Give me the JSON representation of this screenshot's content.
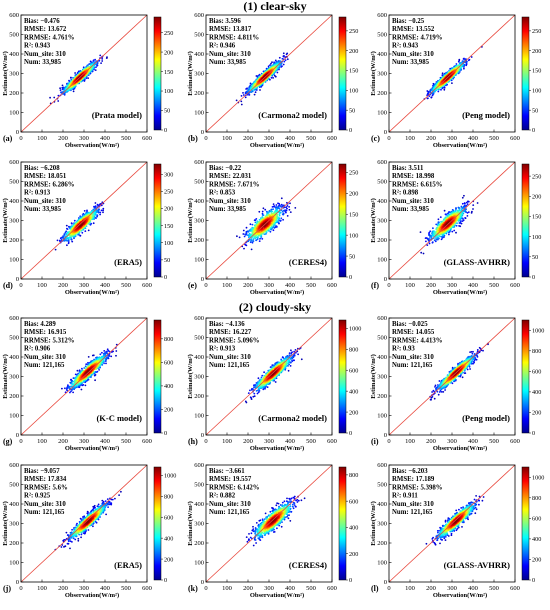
{
  "sections": [
    {
      "title": "(1) clear-sky"
    },
    {
      "title": "(2) cloudy-sky"
    }
  ],
  "chart_data": [
    {
      "type": "scatter",
      "panel_label": "(a)",
      "model": "(Prata model)",
      "section": 0,
      "stats": [
        "Bias: −0.476",
        "RMSE: 13.672",
        "RRMSE: 4.761%",
        "R²: 0.943",
        "Num_site: 310",
        "Num: 33,985"
      ],
      "xlabel": "Observation(W/m²)",
      "ylabel": "Estimate(W/m²)",
      "xlim": [
        0,
        600
      ],
      "ylim": [
        0,
        600
      ],
      "ticks": [
        0,
        100,
        200,
        300,
        400,
        500,
        600
      ],
      "density_center": [
        280,
        280
      ],
      "density_spread": [
        55,
        10
      ],
      "colorbar_ticks": [
        0,
        50,
        100,
        150,
        200,
        250
      ],
      "colorbar_max": 290
    },
    {
      "type": "scatter",
      "panel_label": "(b)",
      "model": "(Carmona2 model)",
      "section": 0,
      "stats": [
        "Bias: 3.596",
        "RMSE: 13.817",
        "RRMSE: 4.811%",
        "R²: 0.946",
        "Num_site: 310",
        "Num: 33,985"
      ],
      "xlabel": "Observation(W/m²)",
      "ylabel": "Estimate(W/m²)",
      "xlim": [
        0,
        600
      ],
      "ylim": [
        0,
        600
      ],
      "ticks": [
        0,
        100,
        200,
        300,
        400,
        500,
        600
      ],
      "density_center": [
        280,
        283
      ],
      "density_spread": [
        55,
        10
      ],
      "colorbar_ticks": [
        0,
        50,
        100,
        150,
        200,
        250
      ],
      "colorbar_max": 285
    },
    {
      "type": "scatter",
      "panel_label": "(c)",
      "model": "(Peng model)",
      "section": 0,
      "stats": [
        "Bias: −0.25",
        "RMSE: 13.552",
        "RRMSE: 4.719%",
        "R²: 0.943",
        "Num_site: 310",
        "Num: 33,985"
      ],
      "xlabel": "Observation(W/m²)",
      "ylabel": "Estimate(W/m²)",
      "xlim": [
        0,
        600
      ],
      "ylim": [
        0,
        600
      ],
      "ticks": [
        0,
        100,
        200,
        300,
        400,
        500,
        600
      ],
      "density_center": [
        280,
        280
      ],
      "density_spread": [
        55,
        10
      ],
      "colorbar_ticks": [
        0,
        50,
        100,
        150,
        200,
        250
      ],
      "colorbar_max": 285
    },
    {
      "type": "scatter",
      "panel_label": "(d)",
      "model": "(ERA5)",
      "section": 0,
      "stats": [
        "Bias: −6.208",
        "RMSE: 18.051",
        "RRMSE: 6.286%",
        "R²: 0.913",
        "Num_site: 310",
        "Num: 33,985"
      ],
      "xlabel": "Observation(W/m²)",
      "ylabel": "Estimate(W/m²)",
      "xlim": [
        0,
        600
      ],
      "ylim": [
        0,
        600
      ],
      "ticks": [
        0,
        100,
        200,
        300,
        400,
        500,
        600
      ],
      "density_center": [
        285,
        278
      ],
      "density_spread": [
        55,
        14
      ],
      "colorbar_ticks": [
        0,
        50,
        100,
        150,
        200,
        250,
        300
      ],
      "colorbar_max": 330
    },
    {
      "type": "scatter",
      "panel_label": "(e)",
      "model": "(CERES4)",
      "section": 0,
      "stats": [
        "Bias: −0.22",
        "RMSE: 22.031",
        "RRMSE: 7.671%",
        "R²: 0.853",
        "Num_site: 310",
        "Num: 33,985"
      ],
      "xlabel": "Observation(W/m²)",
      "ylabel": "Estimate(W/m²)",
      "xlim": [
        0,
        600
      ],
      "ylim": [
        0,
        600
      ],
      "ticks": [
        0,
        100,
        200,
        300,
        400,
        500,
        600
      ],
      "density_center": [
        280,
        280
      ],
      "density_spread": [
        55,
        20
      ],
      "colorbar_ticks": [
        0,
        50,
        100,
        150,
        200,
        250
      ],
      "colorbar_max": 270
    },
    {
      "type": "scatter",
      "panel_label": "(f)",
      "model": "(GLASS-AVHRR)",
      "section": 0,
      "stats": [
        "Bias: 3.511",
        "RMSE: 18.998",
        "RRMSE: 6.615%",
        "R²: 0.898",
        "Num_site: 310",
        "Num: 33,985"
      ],
      "xlabel": "Observation(W/m²)",
      "ylabel": "Estimate(W/m²)",
      "xlim": [
        0,
        600
      ],
      "ylim": [
        0,
        600
      ],
      "ticks": [
        0,
        100,
        200,
        300,
        400,
        500,
        600
      ],
      "density_center": [
        280,
        284
      ],
      "density_spread": [
        55,
        17
      ],
      "colorbar_ticks": [
        0,
        50,
        100,
        150,
        200,
        250
      ],
      "colorbar_max": 280
    },
    {
      "type": "scatter",
      "panel_label": "(g)",
      "model": "(K-C model)",
      "section": 1,
      "stats": [
        "Bias: 4.289",
        "RMSE: 16.915",
        "RRMSE: 5.312%",
        "R²: 0.906",
        "Num_site: 310",
        "Num: 121,165"
      ],
      "xlabel": "Observation(W/m²)",
      "ylabel": "Estimate(W/m²)",
      "xlim": [
        0,
        600
      ],
      "ylim": [
        0,
        600
      ],
      "ticks": [
        0,
        100,
        200,
        300,
        400,
        500,
        600
      ],
      "density_center": [
        320,
        325
      ],
      "density_spread": [
        60,
        13
      ],
      "colorbar_ticks": [
        0,
        200,
        400,
        600,
        800
      ],
      "colorbar_max": 960
    },
    {
      "type": "scatter",
      "panel_label": "(h)",
      "model": "(Carmona2 model)",
      "section": 1,
      "stats": [
        "Bias: −4.136",
        "RMSE: 16.227",
        "RRMSE: 5.096%",
        "R²: 0.913",
        "Num_site: 310",
        "Num: 121,165"
      ],
      "xlabel": "Observation(W/m²)",
      "ylabel": "Estimate(W/m²)",
      "xlim": [
        0,
        600
      ],
      "ylim": [
        0,
        600
      ],
      "ticks": [
        0,
        100,
        200,
        300,
        400,
        500,
        600
      ],
      "density_center": [
        320,
        316
      ],
      "density_spread": [
        60,
        13
      ],
      "colorbar_ticks": [
        0,
        200,
        400,
        600,
        800,
        1000
      ],
      "colorbar_max": 1080
    },
    {
      "type": "scatter",
      "panel_label": "(i)",
      "model": "(Peng model)",
      "section": 1,
      "stats": [
        "Bias: −0.025",
        "RMSE: 14.055",
        "RRMSE: 4.413%",
        "R²: 0.93",
        "Num_site: 310",
        "Num: 121,165"
      ],
      "xlabel": "Observation(W/m²)",
      "ylabel": "Estimate(W/m²)",
      "xlim": [
        0,
        600
      ],
      "ylim": [
        0,
        600
      ],
      "ticks": [
        0,
        100,
        200,
        300,
        400,
        500,
        600
      ],
      "density_center": [
        320,
        320
      ],
      "density_spread": [
        60,
        11
      ],
      "colorbar_ticks": [
        0,
        200,
        400,
        600,
        800,
        1000
      ],
      "colorbar_max": 1100
    },
    {
      "type": "scatter",
      "panel_label": "(j)",
      "model": "(ERA5)",
      "section": 1,
      "stats": [
        "Bias: −9.057",
        "RMSE: 17.834",
        "RRMSE: 5.6%",
        "R²: 0.925",
        "Num_site: 310",
        "Num: 121,165"
      ],
      "xlabel": "Observation(W/m²)",
      "ylabel": "Estimate(W/m²)",
      "xlim": [
        0,
        600
      ],
      "ylim": [
        0,
        600
      ],
      "ticks": [
        0,
        100,
        200,
        300,
        400,
        500,
        600
      ],
      "density_center": [
        320,
        311
      ],
      "density_spread": [
        60,
        12
      ],
      "colorbar_ticks": [
        0,
        200,
        400,
        600,
        800,
        1000
      ],
      "colorbar_max": 1080
    },
    {
      "type": "scatter",
      "panel_label": "(k)",
      "model": "(CERES4)",
      "section": 1,
      "stats": [
        "Bias: −3.661",
        "RMSE: 19.557",
        "RRMSE: 6.142%",
        "R²: 0.882",
        "Num_site: 310",
        "Num: 121,165"
      ],
      "xlabel": "Observation(W/m²)",
      "ylabel": "Estimate(W/m²)",
      "xlim": [
        0,
        600
      ],
      "ylim": [
        0,
        600
      ],
      "ticks": [
        0,
        100,
        200,
        300,
        400,
        500,
        600
      ],
      "density_center": [
        320,
        316
      ],
      "density_spread": [
        60,
        17
      ],
      "colorbar_ticks": [
        0,
        200,
        400,
        600,
        800
      ],
      "colorbar_max": 860
    },
    {
      "type": "scatter",
      "panel_label": "(l)",
      "model": "(GLASS-AVHRR)",
      "section": 1,
      "stats": [
        "Bias: −6.203",
        "RMSE: 17.189",
        "RRMSE: 5.398%",
        "R²: 0.911",
        "Num_site: 310",
        "Num: 121,165"
      ],
      "xlabel": "Observation(W/m²)",
      "ylabel": "Estimate(W/m²)",
      "xlim": [
        0,
        600
      ],
      "ylim": [
        0,
        600
      ],
      "ticks": [
        0,
        100,
        200,
        300,
        400,
        500,
        600
      ],
      "density_center": [
        320,
        314
      ],
      "density_spread": [
        60,
        13
      ],
      "colorbar_ticks": [
        0,
        200,
        400,
        600,
        800,
        1000
      ],
      "colorbar_max": 1100
    }
  ]
}
